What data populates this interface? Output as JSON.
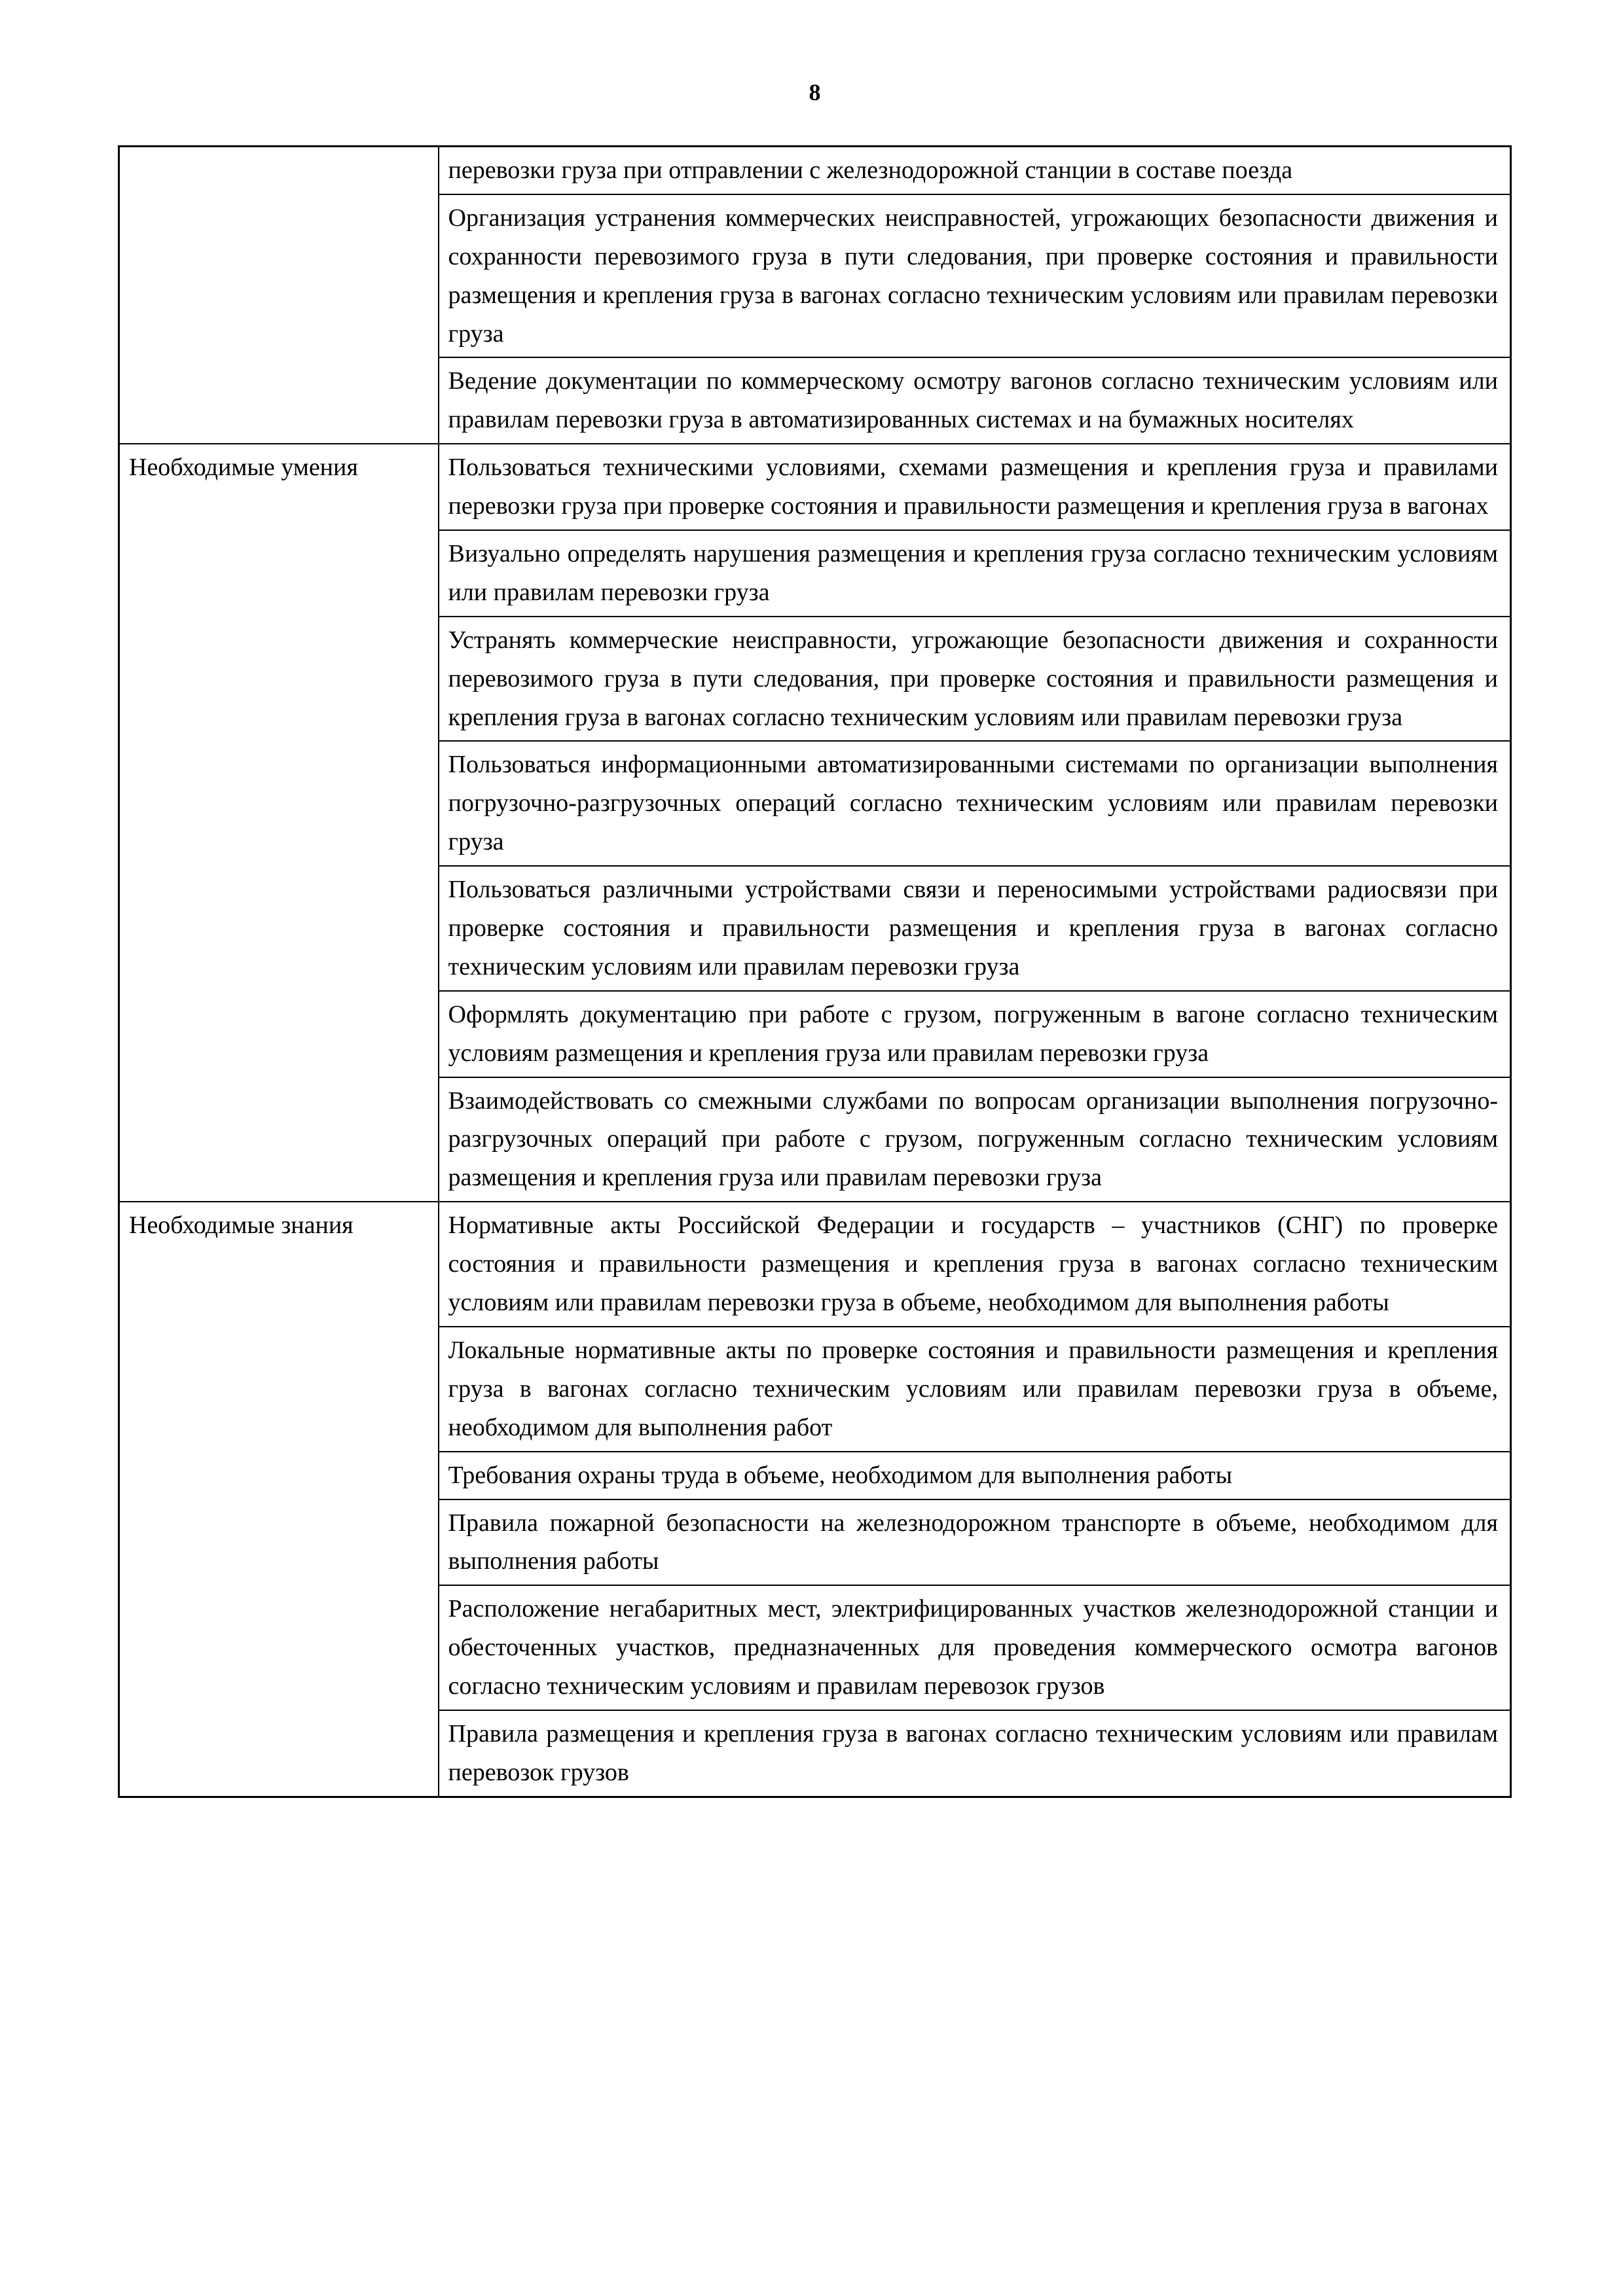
{
  "page_number": "8",
  "table": {
    "sections": [
      {
        "label": "",
        "rows": [
          "перевозки груза при отправлении с железнодорожной станции в составе поезда",
          "Организация устранения коммерческих неисправностей, угрожающих безопасности движения и сохранности перевозимого груза в пути следования, при проверке состояния и правильности размещения и крепления груза в вагонах согласно техническим условиям или правилам перевозки груза",
          "Ведение документации по коммерческому осмотру вагонов согласно техническим условиям или правилам перевозки груза в автоматизированных системах и на бумажных носителях"
        ]
      },
      {
        "label": "Необходимые умения",
        "rows": [
          "Пользоваться техническими условиями, схемами размещения и крепления груза и правилами перевозки груза при проверке состояния и правильности размещения и крепления груза в вагонах",
          "Визуально определять нарушения размещения и крепления груза согласно техническим условиям или правилам перевозки груза",
          "Устранять коммерческие неисправности, угрожающие безопасности движения и сохранности перевозимого груза в пути следования, при проверке состояния и правильности размещения и крепления груза в вагонах согласно техническим условиям или правилам перевозки груза",
          "Пользоваться информационными автоматизированными системами по организации выполнения погрузочно-разгрузочных операций согласно техническим условиям или правилам перевозки груза",
          "Пользоваться различными устройствами связи и переносимыми устройствами радиосвязи при проверке состояния и правильности размещения и крепления груза в вагонах согласно техническим условиям или правилам перевозки груза",
          "Оформлять документацию при работе с грузом, погруженным в вагоне согласно техническим условиям размещения и крепления груза или правилам перевозки груза",
          "Взаимодействовать со смежными службами по вопросам организации выполнения погрузочно-разгрузочных операций при работе с грузом, погруженным согласно техническим условиям размещения и крепления груза или правилам перевозки груза"
        ]
      },
      {
        "label": "Необходимые знания",
        "rows": [
          "Нормативные акты Российской Федерации и государств – участников (СНГ) по проверке состояния и правильности размещения и крепления груза в вагонах согласно техническим условиям или правилам перевозки груза в объеме, необходимом для выполнения работы",
          "Локальные нормативные акты по проверке состояния и правильности размещения и крепления груза в вагонах согласно техническим условиям или правилам перевозки груза в объеме, необходимом для выполнения работ",
          "Требования охраны труда в объеме, необходимом для выполнения работы",
          "Правила пожарной безопасности на железнодорожном транспорте в объеме, необходимом для выполнения работы",
          "Расположение негабаритных мест, электрифицированных участков железнодорожной станции и обесточенных участков, предназначенных для проведения коммерческого осмотра вагонов согласно техническим условиям и правилам перевозок грузов",
          "Правила размещения и крепления груза в вагонах согласно техническим условиям или правилам перевозок грузов"
        ]
      }
    ]
  }
}
